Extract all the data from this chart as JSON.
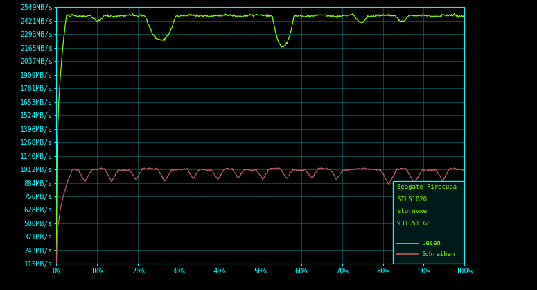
{
  "background_color": "#000000",
  "plot_bg_color": "#000000",
  "grid_color": "#008080",
  "axis_color": "#00ffff",
  "text_color": "#00ffff",
  "title": "",
  "ytick_labels": [
    "115MB/s",
    "243MB/s",
    "371MB/s",
    "500MB/s",
    "628MB/s",
    "756MB/s",
    "884MB/s",
    "1012MB/s",
    "1140MB/s",
    "1268MB/s",
    "1396MB/s",
    "1524MB/s",
    "1653MB/s",
    "1781MB/s",
    "1909MB/s",
    "2037MB/s",
    "2165MB/s",
    "2293MB/s",
    "2421MB/s",
    "2549MB/s"
  ],
  "ytick_values": [
    115,
    243,
    371,
    500,
    628,
    756,
    884,
    1012,
    1140,
    1268,
    1396,
    1524,
    1653,
    1781,
    1909,
    2037,
    2165,
    2293,
    2421,
    2549
  ],
  "xtick_labels": [
    "0%",
    "10%",
    "20%",
    "30%",
    "40%",
    "50%",
    "60%",
    "70%",
    "80%",
    "90%",
    "100%"
  ],
  "xtick_values": [
    0,
    10,
    20,
    30,
    40,
    50,
    60,
    70,
    80,
    90,
    100
  ],
  "ymin": 115,
  "ymax": 2549,
  "xmin": 0,
  "xmax": 100,
  "read_color": "#80ff00",
  "write_color": "#c06060",
  "legend_box_color": "#001a1a",
  "legend_border_color": "#00ffff",
  "legend_text_color": "#80ff00",
  "legend_title": "Seagate Firecuda\nSTLS1020\nstornvme\n931,51 GB",
  "legend_lesen": "Lesen",
  "legend_schreiben": "Schreiben"
}
